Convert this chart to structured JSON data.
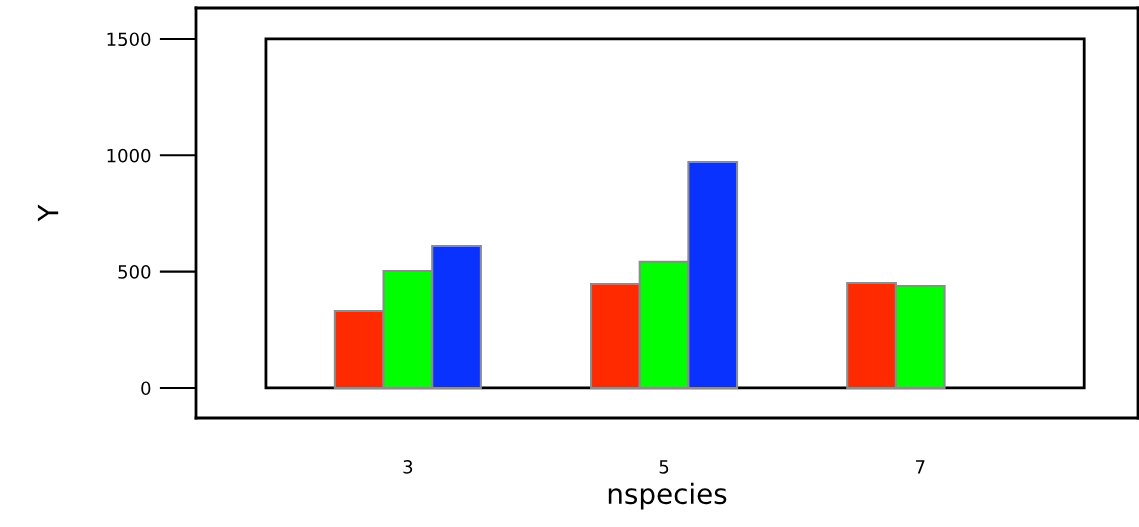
{
  "chart_data": {
    "type": "bar",
    "xlabel": "nspecies",
    "ylabel": "Y",
    "categories": [
      "3",
      "5",
      "7"
    ],
    "series": [
      {
        "color": "#ff2a00",
        "values": [
          331,
          447,
          451
        ]
      },
      {
        "color": "#00ff00",
        "values": [
          503,
          542,
          438
        ]
      },
      {
        "color": "#0a32ff",
        "values": [
          610,
          971,
          null
        ]
      }
    ],
    "ylim": [
      -129,
      1633
    ],
    "yticks": [
      0,
      500,
      1000,
      1500
    ],
    "grid": false,
    "legend": false
  }
}
